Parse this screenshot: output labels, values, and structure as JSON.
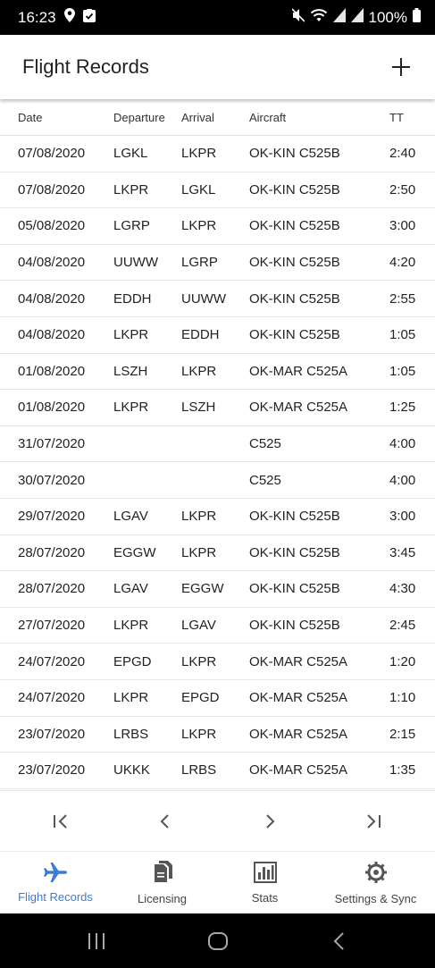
{
  "status_bar": {
    "time": "16:23",
    "battery": "100%",
    "icons": [
      "location-icon",
      "check-square-icon",
      "mute-icon",
      "wifi-icon",
      "signal-icon",
      "signal-icon",
      "battery-icon"
    ]
  },
  "app_bar": {
    "title": "Flight Records",
    "add_icon": "plus-icon"
  },
  "table": {
    "headers": [
      "Date",
      "Departure",
      "Arrival",
      "Aircraft",
      "TT"
    ],
    "rows": [
      [
        "07/08/2020",
        "LGKL",
        "LKPR",
        "OK-KIN C525B",
        "2:40"
      ],
      [
        "07/08/2020",
        "LKPR",
        "LGKL",
        "OK-KIN C525B",
        "2:50"
      ],
      [
        "05/08/2020",
        "LGRP",
        "LKPR",
        "OK-KIN C525B",
        "3:00"
      ],
      [
        "04/08/2020",
        "UUWW",
        "LGRP",
        "OK-KIN C525B",
        "4:20"
      ],
      [
        "04/08/2020",
        "EDDH",
        "UUWW",
        "OK-KIN C525B",
        "2:55"
      ],
      [
        "04/08/2020",
        "LKPR",
        "EDDH",
        "OK-KIN C525B",
        "1:05"
      ],
      [
        "01/08/2020",
        "LSZH",
        "LKPR",
        "OK-MAR C525A",
        "1:05"
      ],
      [
        "01/08/2020",
        "LKPR",
        "LSZH",
        "OK-MAR C525A",
        "1:25"
      ],
      [
        "31/07/2020",
        "",
        "",
        "C525",
        "4:00"
      ],
      [
        "30/07/2020",
        "",
        "",
        "C525",
        "4:00"
      ],
      [
        "29/07/2020",
        "LGAV",
        "LKPR",
        "OK-KIN C525B",
        "3:00"
      ],
      [
        "28/07/2020",
        "EGGW",
        "LKPR",
        "OK-KIN C525B",
        "3:45"
      ],
      [
        "28/07/2020",
        "LGAV",
        "EGGW",
        "OK-KIN C525B",
        "4:30"
      ],
      [
        "27/07/2020",
        "LKPR",
        "LGAV",
        "OK-KIN C525B",
        "2:45"
      ],
      [
        "24/07/2020",
        "EPGD",
        "LKPR",
        "OK-MAR C525A",
        "1:20"
      ],
      [
        "24/07/2020",
        "LKPR",
        "EPGD",
        "OK-MAR C525A",
        "1:10"
      ],
      [
        "23/07/2020",
        "LRBS",
        "LKPR",
        "OK-MAR C525A",
        "2:15"
      ],
      [
        "23/07/2020",
        "UKKK",
        "LRBS",
        "OK-MAR C525A",
        "1:35"
      ]
    ]
  },
  "pager": {
    "buttons": [
      "first-page-icon",
      "previous-page-icon",
      "next-page-icon",
      "last-page-icon"
    ]
  },
  "bottom_nav": {
    "active_color": "#3a7bd5",
    "items": [
      {
        "label": "Flight Records",
        "icon": "airplane-icon",
        "active": true
      },
      {
        "label": "Licensing",
        "icon": "documents-icon",
        "active": false
      },
      {
        "label": "Stats",
        "icon": "bar-chart-icon",
        "active": false
      },
      {
        "label": "Settings & Sync",
        "icon": "gear-icon",
        "active": false
      }
    ]
  },
  "system_nav": {
    "buttons": [
      "recent-apps-icon",
      "home-icon",
      "back-icon"
    ]
  }
}
